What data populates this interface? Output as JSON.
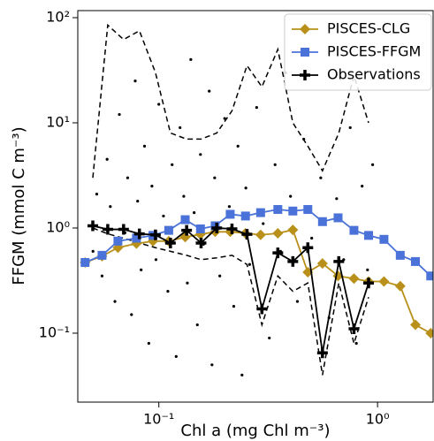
{
  "chart_data": {
    "type": "line",
    "xscale": "log",
    "yscale": "log",
    "xlabel": "Chl a (mg Chl m⁻³)",
    "ylabel": "FFGM (mmol C m⁻³)",
    "xlim": [
      0.0426,
      1.795
    ],
    "ylim": [
      0.0221,
      116.7
    ],
    "xticks": [
      {
        "value": 0.1,
        "label": "10⁻¹"
      },
      {
        "value": 1,
        "label": "10⁰"
      }
    ],
    "yticks": [
      {
        "value": 0.1,
        "label": "10⁻¹"
      },
      {
        "value": 1,
        "label": "10⁰"
      },
      {
        "value": 10,
        "label": "10¹"
      },
      {
        "value": 100,
        "label": "10²"
      }
    ],
    "legend": "upper right",
    "series": [
      {
        "kind": "scatter",
        "color": "#000000",
        "x": [
          0.05,
          0.052,
          0.055,
          0.058,
          0.06,
          0.063,
          0.066,
          0.07,
          0.072,
          0.075,
          0.078,
          0.08,
          0.083,
          0.086,
          0.09,
          0.093,
          0.097,
          0.1,
          0.105,
          0.11,
          0.115,
          0.12,
          0.125,
          0.13,
          0.135,
          0.14,
          0.145,
          0.15,
          0.155,
          0.16,
          0.17,
          0.175,
          0.18,
          0.19,
          0.2,
          0.21,
          0.22,
          0.23,
          0.24,
          0.25,
          0.26,
          0.28,
          0.3,
          0.32,
          0.34,
          0.36,
          0.38,
          0.4,
          0.43,
          0.46,
          0.5,
          0.55,
          0.6,
          0.65,
          0.7,
          0.75,
          0.8,
          0.85,
          0.9,
          0.95
        ],
        "values": [
          0.6,
          2.1,
          0.35,
          4.5,
          1.6,
          0.2,
          12,
          0.9,
          3,
          0.15,
          25,
          1.8,
          0.4,
          6,
          0.08,
          2.5,
          0.5,
          15,
          1.3,
          0.25,
          4,
          0.06,
          9,
          2,
          0.3,
          40,
          1.4,
          0.12,
          5,
          0.7,
          20,
          0.05,
          3,
          0.35,
          11,
          1.6,
          0.18,
          6,
          0.04,
          2.4,
          0.45,
          14,
          1.1,
          0.09,
          4,
          0.6,
          30,
          2,
          0.2,
          7,
          0.8,
          3,
          0.14,
          1.9,
          0.5,
          9,
          0.08,
          2.5,
          0.4,
          4
        ]
      },
      {
        "kind": "dashed",
        "color": "#000000",
        "x": [
          0.0499,
          0.0584,
          0.069,
          0.0815,
          0.0965,
          0.113,
          0.134,
          0.156,
          0.184,
          0.216,
          0.253,
          0.296,
          0.35,
          0.41,
          0.48,
          0.56,
          0.665,
          0.78,
          0.91
        ],
        "values": [
          3,
          85,
          62,
          75,
          30,
          8,
          7,
          7,
          8,
          13,
          35,
          22,
          50,
          10,
          6,
          3.5,
          8,
          28,
          10
        ]
      },
      {
        "kind": "dashed",
        "color": "#000000",
        "x": [
          0.0499,
          0.0584,
          0.069,
          0.0815,
          0.0965,
          0.113,
          0.134,
          0.156,
          0.184,
          0.216,
          0.253,
          0.296,
          0.35,
          0.41,
          0.48,
          0.56,
          0.665,
          0.78,
          0.91
        ],
        "values": [
          1,
          0.88,
          0.8,
          0.72,
          0.65,
          0.6,
          0.55,
          0.5,
          0.52,
          0.55,
          0.45,
          0.12,
          0.35,
          0.25,
          0.3,
          0.04,
          0.3,
          0.08,
          0.22
        ]
      },
      {
        "kind": "line",
        "name": "PISCES-CLG",
        "color": "#b8901a",
        "marker": "diamond",
        "x": [
          0.046,
          0.055,
          0.065,
          0.079,
          0.094,
          0.111,
          0.132,
          0.155,
          0.181,
          0.212,
          0.249,
          0.292,
          0.35,
          0.41,
          0.48,
          0.56,
          0.66,
          0.78,
          0.91,
          1.07,
          1.27,
          1.49,
          1.75
        ],
        "values": [
          0.47,
          0.54,
          0.65,
          0.71,
          0.75,
          0.75,
          0.82,
          0.87,
          0.92,
          0.92,
          0.89,
          0.86,
          0.89,
          0.96,
          0.38,
          0.46,
          0.35,
          0.33,
          0.31,
          0.31,
          0.28,
          0.12,
          0.1
        ]
      },
      {
        "kind": "line",
        "name": "PISCES-FFGM",
        "color": "#4a72d8",
        "marker": "square",
        "x": [
          0.046,
          0.055,
          0.065,
          0.079,
          0.094,
          0.111,
          0.132,
          0.155,
          0.181,
          0.212,
          0.249,
          0.292,
          0.35,
          0.41,
          0.48,
          0.56,
          0.66,
          0.78,
          0.91,
          1.07,
          1.27,
          1.49,
          1.75
        ],
        "values": [
          0.47,
          0.55,
          0.75,
          0.8,
          0.85,
          0.95,
          1.2,
          0.98,
          1.05,
          1.35,
          1.3,
          1.4,
          1.5,
          1.45,
          1.5,
          1.15,
          1.25,
          0.95,
          0.85,
          0.78,
          0.55,
          0.48,
          0.35
        ]
      },
      {
        "kind": "line",
        "name": "Observations",
        "color": "#000000",
        "marker": "plus",
        "x": [
          0.0499,
          0.0584,
          0.069,
          0.0815,
          0.0965,
          0.113,
          0.134,
          0.156,
          0.184,
          0.216,
          0.253,
          0.296,
          0.35,
          0.41,
          0.48,
          0.56,
          0.665,
          0.78,
          0.91
        ],
        "values": [
          1.05,
          0.97,
          0.97,
          0.88,
          0.86,
          0.72,
          0.95,
          0.72,
          1,
          0.98,
          0.87,
          0.17,
          0.58,
          0.48,
          0.65,
          0.065,
          0.48,
          0.11,
          0.3
        ]
      }
    ]
  }
}
